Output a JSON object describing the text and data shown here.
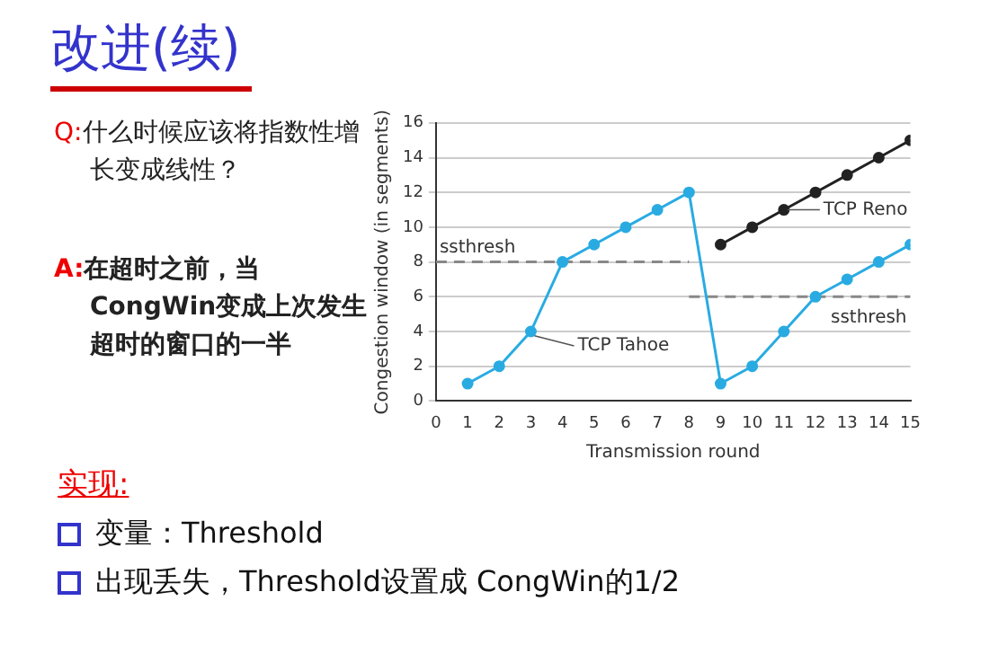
{
  "chart_data": {
    "type": "line",
    "title": "改进(续)",
    "xlabel": "Transmission round",
    "ylabel": "Congestion window (in segments)",
    "annotations": [
      "Q:什么时候应该将指数性增长变成线性？",
      "A:在超时之前，当CongWin变成上次发生超时的窗口的一半",
      "实现:",
      "变量：Threshold",
      "出现丢失，Threshold设置成 CongWin的1/2"
    ],
    "series": [
      {
        "name": "TCP Tahoe",
        "color": "#29abe2",
        "marker": "circle",
        "x": [
          1,
          2,
          3,
          4,
          5,
          6,
          7,
          8,
          9,
          10,
          11,
          12,
          13,
          14,
          15
        ],
        "values": [
          1,
          2,
          4,
          8,
          9,
          10,
          11,
          12,
          1,
          2,
          4,
          6,
          7,
          8,
          9
        ]
      },
      {
        "name": "TCP Reno",
        "color": "#222222",
        "marker": "circle",
        "x": [
          9,
          10,
          11,
          12,
          13,
          14,
          15
        ],
        "values": [
          9,
          10,
          11,
          12,
          13,
          14,
          15
        ]
      },
      {
        "name": "ssthresh",
        "color": "#888888",
        "marker": "none",
        "line_style": "dashed",
        "x": [
          0,
          8
        ],
        "values": [
          8,
          8
        ]
      },
      {
        "name": "ssthresh",
        "color": "#888888",
        "marker": "none",
        "line_style": "dashed",
        "x": [
          8,
          15
        ],
        "values": [
          6,
          6
        ]
      }
    ],
    "xlim": [
      0,
      15
    ],
    "ylim": [
      0,
      16
    ],
    "xticks": [
      0,
      1,
      2,
      3,
      4,
      5,
      6,
      7,
      8,
      9,
      10,
      11,
      12,
      13,
      14,
      15
    ],
    "yticks": [
      0,
      2,
      4,
      6,
      8,
      10,
      12,
      14,
      16
    ],
    "grid": "y",
    "legend": false
  }
}
